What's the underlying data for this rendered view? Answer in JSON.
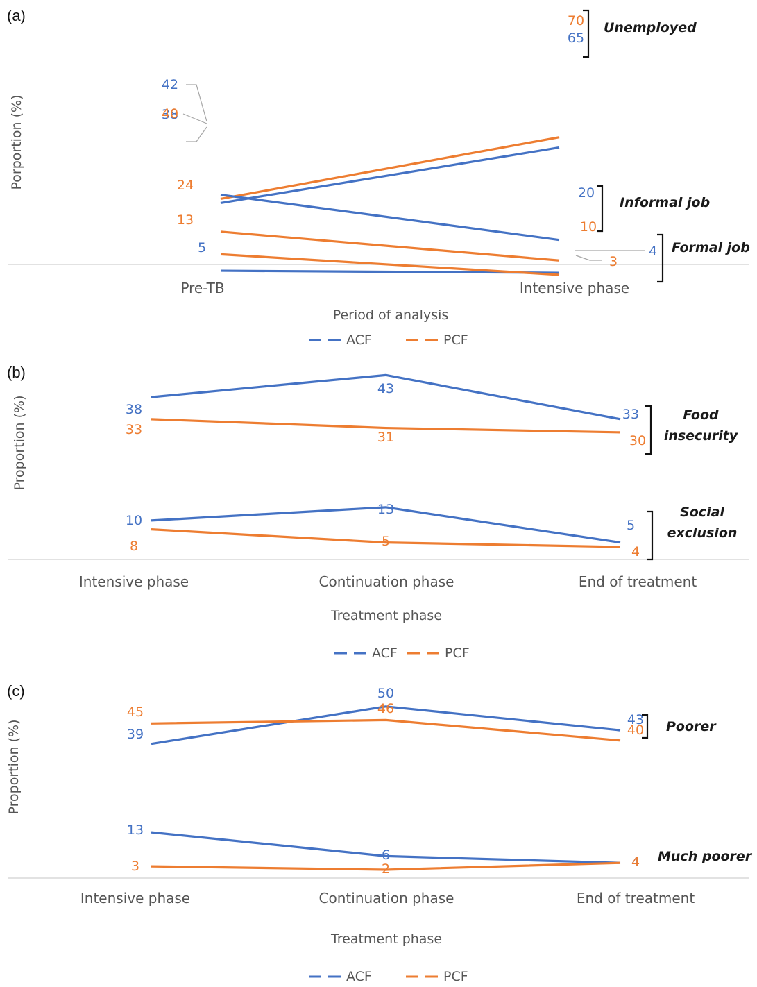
{
  "colors": {
    "ACF": "#4472C4",
    "PCF": "#ED7D31"
  },
  "chart_data": [
    {
      "panel": "(a)",
      "type": "line",
      "xlabel": "Period of analysis",
      "ylabel": "Porportion (%)",
      "categories": [
        "Pre-TB",
        "Intensive phase"
      ],
      "legend": [
        "ACF",
        "PCF"
      ],
      "legend_position": "bottom",
      "groups": [
        {
          "label": "Unemployed",
          "series": [
            {
              "name": "ACF",
              "values": [
                38,
                65
              ]
            },
            {
              "name": "PCF",
              "values": [
                40,
                70
              ]
            }
          ]
        },
        {
          "label": "Informal job",
          "series": [
            {
              "name": "ACF",
              "values": [
                42,
                20
              ]
            },
            {
              "name": "PCF",
              "values": [
                24,
                10
              ]
            }
          ]
        },
        {
          "label": "Formal job",
          "series": [
            {
              "name": "ACF",
              "values": [
                5,
                4
              ]
            },
            {
              "name": "PCF",
              "values": [
                13,
                3
              ]
            }
          ]
        }
      ]
    },
    {
      "panel": "(b)",
      "type": "line",
      "xlabel": "Treatment phase",
      "ylabel": "Proportion (%)",
      "categories": [
        "Intensive phase",
        "Continuation phase",
        "End of treatment"
      ],
      "legend": [
        "ACF",
        "PCF"
      ],
      "legend_position": "bottom",
      "groups": [
        {
          "label": "Food insecurity",
          "series": [
            {
              "name": "ACF",
              "values": [
                38,
                43,
                33
              ]
            },
            {
              "name": "PCF",
              "values": [
                33,
                31,
                30
              ]
            }
          ]
        },
        {
          "label": "Social exclusion",
          "series": [
            {
              "name": "ACF",
              "values": [
                10,
                13,
                5
              ]
            },
            {
              "name": "PCF",
              "values": [
                8,
                5,
                4
              ]
            }
          ]
        }
      ]
    },
    {
      "panel": "(c)",
      "type": "line",
      "xlabel": "Treatment phase",
      "ylabel": "Proportion (%)",
      "categories": [
        "Intensive phase",
        "Continuation phase",
        "End of treatment"
      ],
      "legend": [
        "ACF",
        "PCF"
      ],
      "legend_position": "bottom",
      "groups": [
        {
          "label": "Poorer",
          "series": [
            {
              "name": "ACF",
              "values": [
                39,
                50,
                43
              ]
            },
            {
              "name": "PCF",
              "values": [
                45,
                46,
                40
              ]
            }
          ]
        },
        {
          "label": "Much poorer",
          "series": [
            {
              "name": "ACF",
              "values": [
                13,
                6,
                4
              ]
            },
            {
              "name": "PCF",
              "values": [
                3,
                2,
                4
              ]
            }
          ]
        }
      ]
    }
  ]
}
